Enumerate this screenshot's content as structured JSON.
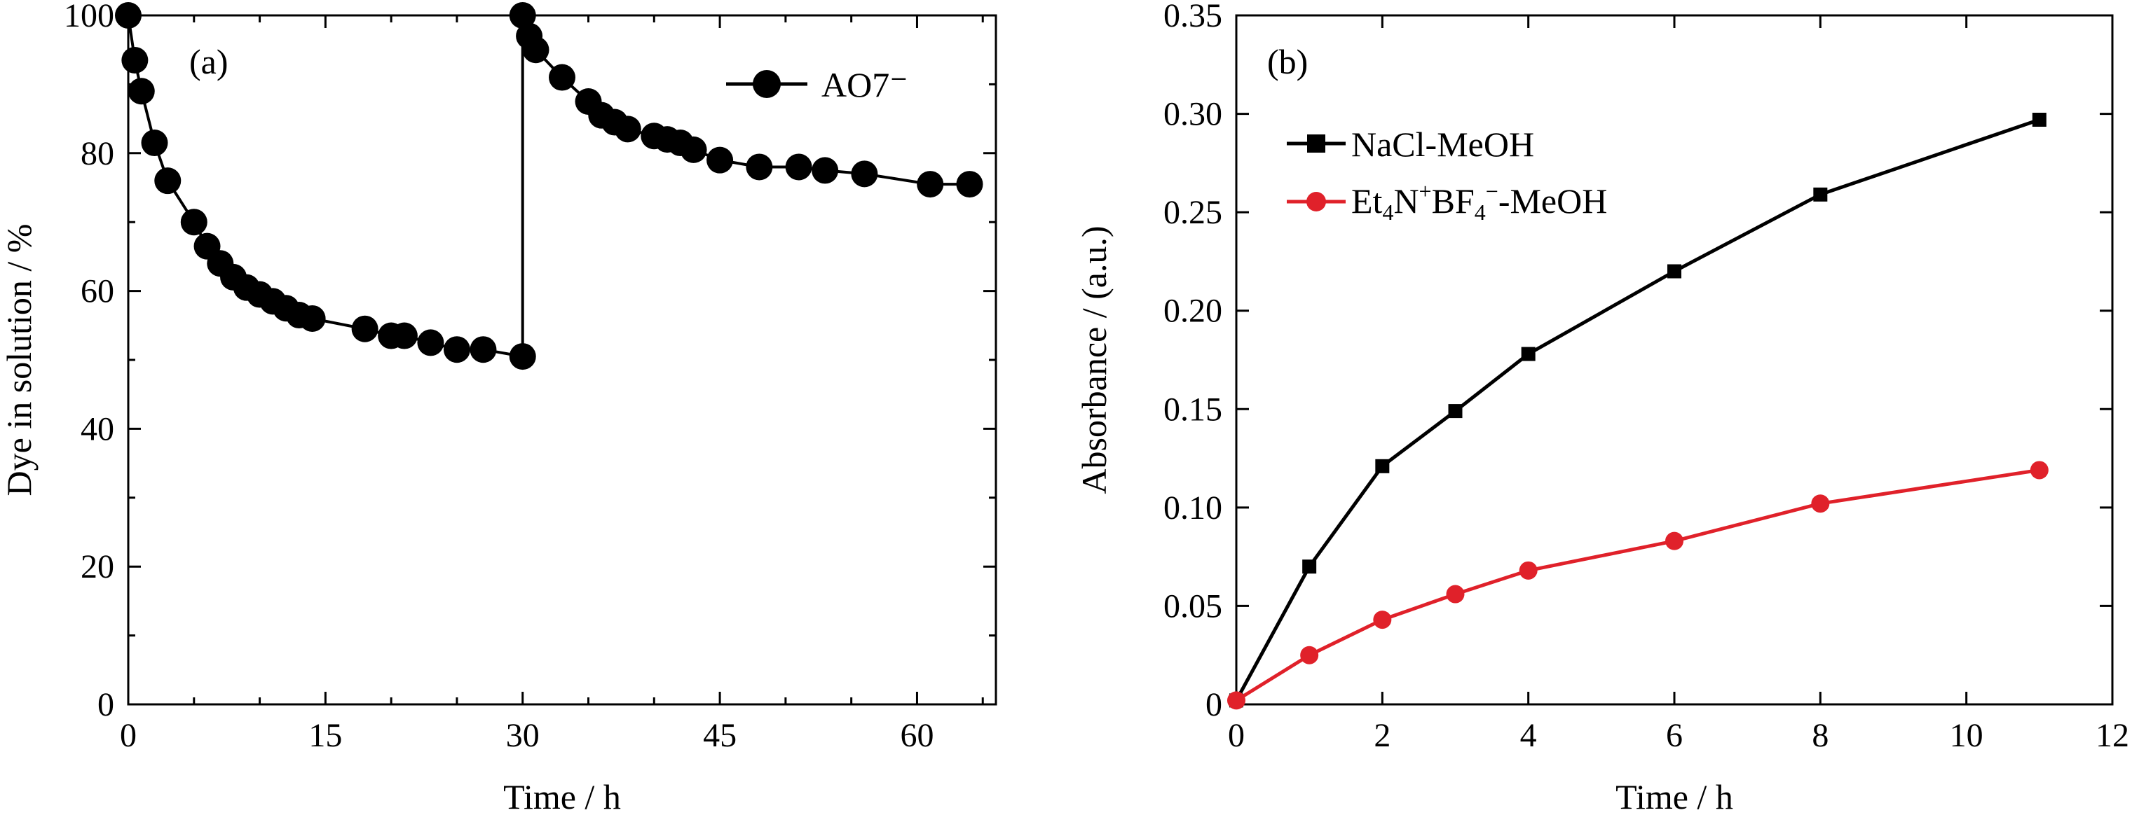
{
  "chart_data": [
    {
      "type": "line",
      "panel_label": "(a)",
      "xlabel": "Time / h",
      "ylabel": "Dye in solution / %",
      "xlim": [
        0,
        66
      ],
      "ylim": [
        0,
        100
      ],
      "xticks": [
        0,
        15,
        30,
        45,
        60
      ],
      "yticks": [
        0,
        20,
        40,
        60,
        80,
        100
      ],
      "xtick_labels": [
        "0",
        "15",
        "30",
        "45",
        "60"
      ],
      "ytick_labels": [
        "0",
        "20",
        "40",
        "60",
        "80",
        "100"
      ],
      "legend_position": "top-right",
      "series": [
        {
          "name": "AO7⁻",
          "color": "#000000",
          "marker": "circle",
          "x": [
            0,
            0.5,
            1,
            2,
            3,
            5,
            6,
            7,
            8,
            9,
            10,
            11,
            12,
            13,
            14,
            18,
            20,
            21,
            23,
            25,
            27,
            30,
            30,
            30.5,
            31,
            33,
            35,
            36,
            37,
            38,
            40,
            41,
            42,
            43,
            45,
            48,
            51,
            53,
            56,
            61,
            64
          ],
          "y": [
            100,
            93.5,
            89,
            81.5,
            76,
            70,
            66.5,
            64,
            62,
            60.5,
            59.5,
            58.5,
            57.5,
            56.5,
            56,
            54.5,
            53.5,
            53.5,
            52.5,
            51.5,
            51.5,
            50.5,
            100,
            97,
            95,
            91,
            87.5,
            85.5,
            84.5,
            83.5,
            82.5,
            82,
            81.5,
            80.5,
            79,
            78,
            78,
            77.5,
            77,
            75.5,
            75.5
          ]
        }
      ]
    },
    {
      "type": "line",
      "panel_label": "(b)",
      "xlabel": "Time / h",
      "ylabel": "Absorbance / (a.u.)",
      "xlim": [
        0,
        12
      ],
      "ylim": [
        0,
        0.35
      ],
      "xticks": [
        0,
        2,
        4,
        6,
        8,
        10,
        12
      ],
      "yticks": [
        0,
        0.05,
        0.1,
        0.15,
        0.2,
        0.25,
        0.3,
        0.35
      ],
      "xtick_labels": [
        "0",
        "2",
        "4",
        "6",
        "8",
        "10",
        "12"
      ],
      "ytick_labels": [
        "0",
        "0.05",
        "0.10",
        "0.15",
        "0.20",
        "0.25",
        "0.30",
        "0.35"
      ],
      "legend_position": "top-left",
      "series": [
        {
          "name": "NaCl-MeOH",
          "color": "#000000",
          "marker": "square",
          "x": [
            0,
            1,
            2,
            3,
            4,
            6,
            8,
            11
          ],
          "y": [
            0.002,
            0.07,
            0.121,
            0.149,
            0.178,
            0.22,
            0.259,
            0.297
          ]
        },
        {
          "name": "Et4N+BF4−-MeOH",
          "color": "#e0212a",
          "marker": "circle",
          "x": [
            0,
            1,
            2,
            3,
            4,
            6,
            8,
            11
          ],
          "y": [
            0.002,
            0.025,
            0.043,
            0.056,
            0.068,
            0.083,
            0.102,
            0.119
          ]
        }
      ]
    }
  ]
}
